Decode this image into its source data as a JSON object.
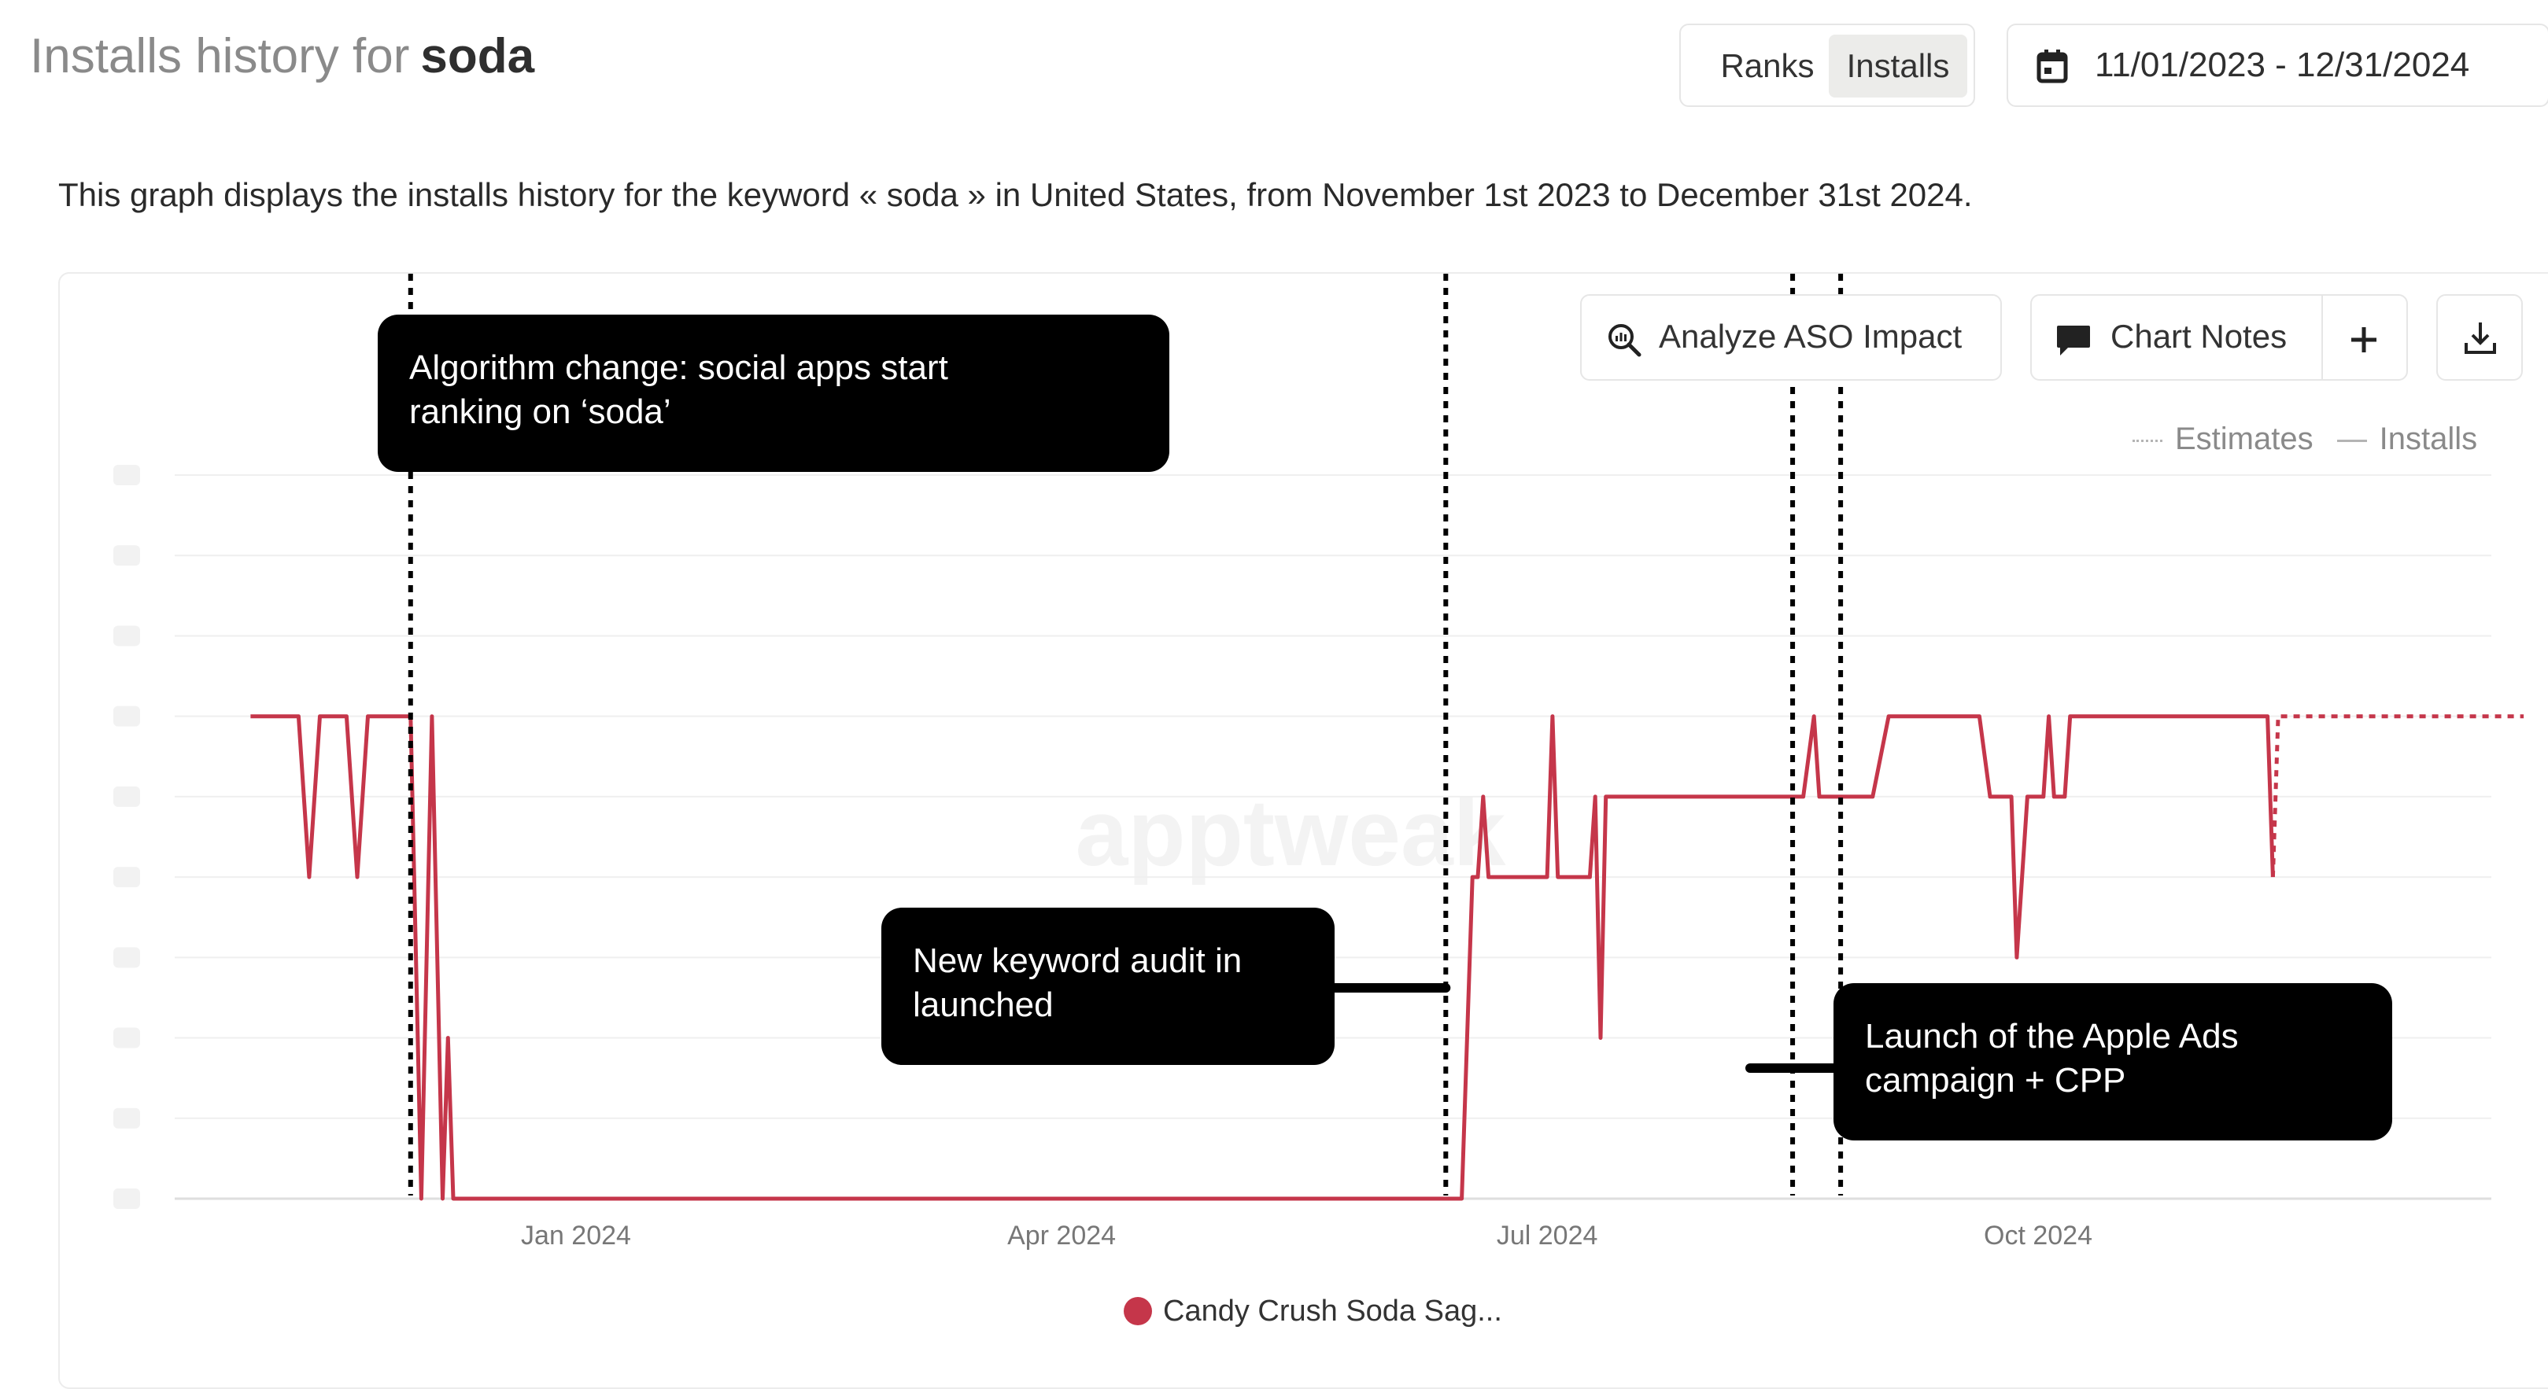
{
  "header": {
    "title_prefix": "Installs history for",
    "keyword": "soda",
    "toggle": {
      "ranks_label": "Ranks",
      "installs_label": "Installs",
      "active": "Installs"
    },
    "date_range": "11/01/2023 - 12/31/2024"
  },
  "description": "This graph displays the installs history for the keyword « soda » in United States, from November 1st 2023 to December 31st 2024.",
  "toolbar": {
    "analyze_label": "Analyze ASO Impact",
    "chart_notes_label": "Chart Notes"
  },
  "legend": {
    "estimates_label": "Estimates",
    "installs_label": "Installs"
  },
  "annotations": [
    {
      "text": "Algorithm change: social apps start\nranking on ‘soda’"
    },
    {
      "text": "New keyword audit in\nlaunched"
    },
    {
      "text": "Launch of the Apple Ads\ncampaign + CPP"
    }
  ],
  "colors": {
    "series": "#c5364a",
    "annotation_bg": "#000000",
    "active_toggle_bg": "#ececea"
  },
  "chart_data": {
    "type": "line",
    "title": "",
    "xlabel": "",
    "ylabel": "",
    "x_ticks": [
      "Jan 2024",
      "Apr 2024",
      "Jul 2024",
      "Oct 2024"
    ],
    "x_tick_dates": [
      "2024-01-01",
      "2024-04-01",
      "2024-07-01",
      "2024-10-01"
    ],
    "xlim": [
      "2023-11-01",
      "2024-12-31"
    ],
    "ylim": [
      0,
      9
    ],
    "y_tick_count": 10,
    "y_tick_labels_obscured": true,
    "grid": true,
    "legend_position": "top-right",
    "series": [
      {
        "name": "Candy Crush Soda Sag...",
        "display_name": "Candy Crush Soda Sag...",
        "points": [
          [
            "2023-11-01",
            6
          ],
          [
            "2023-11-10",
            6
          ],
          [
            "2023-11-12",
            4
          ],
          [
            "2023-11-14",
            6
          ],
          [
            "2023-11-19",
            6
          ],
          [
            "2023-11-21",
            4
          ],
          [
            "2023-11-23",
            6
          ],
          [
            "2023-11-30",
            6
          ],
          [
            "2023-12-01",
            6
          ],
          [
            "2023-12-03",
            0
          ],
          [
            "2023-12-05",
            6
          ],
          [
            "2023-12-07",
            0
          ],
          [
            "2023-12-08",
            2
          ],
          [
            "2023-12-09",
            0
          ],
          [
            "2023-12-20",
            0
          ],
          [
            "2024-06-15",
            0
          ],
          [
            "2024-06-17",
            4
          ],
          [
            "2024-06-18",
            4
          ],
          [
            "2024-06-19",
            5
          ],
          [
            "2024-06-20",
            4
          ],
          [
            "2024-07-01",
            4
          ],
          [
            "2024-07-02",
            6
          ],
          [
            "2024-07-03",
            4
          ],
          [
            "2024-07-09",
            4
          ],
          [
            "2024-07-10",
            5
          ],
          [
            "2024-07-11",
            2
          ],
          [
            "2024-07-12",
            5
          ],
          [
            "2024-08-18",
            5
          ],
          [
            "2024-08-20",
            6
          ],
          [
            "2024-08-21",
            5
          ],
          [
            "2024-08-31",
            5
          ],
          [
            "2024-09-03",
            6
          ],
          [
            "2024-09-20",
            6
          ],
          [
            "2024-09-22",
            5
          ],
          [
            "2024-09-26",
            5
          ],
          [
            "2024-09-27",
            3
          ],
          [
            "2024-09-29",
            5
          ],
          [
            "2024-10-02",
            5
          ],
          [
            "2024-10-03",
            6
          ],
          [
            "2024-10-04",
            5
          ],
          [
            "2024-10-06",
            5
          ],
          [
            "2024-10-07",
            6
          ],
          [
            "2024-11-13",
            6
          ],
          [
            "2024-11-14",
            4
          ]
        ],
        "estimates": [
          [
            "2024-11-14",
            4
          ],
          [
            "2024-11-15",
            6
          ],
          [
            "2024-12-31",
            6
          ]
        ]
      }
    ],
    "annotation_markers": [
      {
        "note": 0,
        "dates": [
          "2023-12-01"
        ]
      },
      {
        "note": 1,
        "dates": [
          "2024-06-12"
        ]
      },
      {
        "note": 2,
        "dates": [
          "2024-08-16",
          "2024-08-25"
        ]
      }
    ],
    "watermark": "apptweak"
  }
}
